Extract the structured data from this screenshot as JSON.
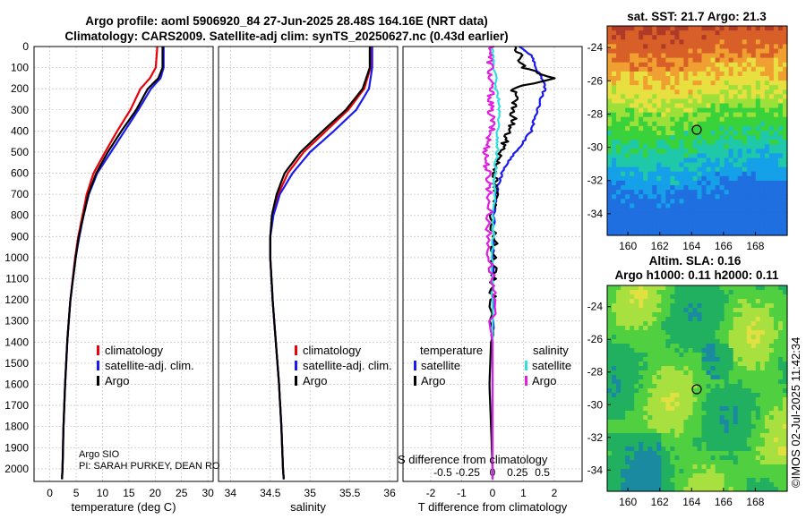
{
  "header": {
    "line1": "Argo profile: aoml 5906920_84 27-Jun-2025 28.48S 164.16E (NRT data)",
    "line2": "Climatology: CARS2009. Satellite-adj clim: synTS_20250627.nc (0.43d earlier)"
  },
  "side": {
    "sst_title": "sat. SST: 21.7 Argo: 21.3",
    "sla_title1": "Altim. SLA: 0.16",
    "sla_title2": "Argo h1000: 0.11 h2000: 0.11",
    "watermark": "©IMOS 02-Jul-2025 11:42:34"
  },
  "credit": {
    "line1": "Argo SIO",
    "line2": "PI: SARAH PURKEY, DEAN RO"
  },
  "colors": {
    "argo": "#000000",
    "climatology": "#e8000b",
    "satellite_adj": "#1a1aee",
    "temp_sat": "#33e0e0",
    "sal_argo": "#e020e0"
  },
  "chart_data": [
    {
      "type": "line",
      "name": "temperature",
      "xlabel": "temperature (deg C)",
      "ylabel": "",
      "xlim": [
        -3,
        31
      ],
      "ylim": [
        2060,
        0
      ],
      "xticks": [
        0,
        5,
        10,
        15,
        20,
        25,
        30
      ],
      "yticks": [
        0,
        100,
        200,
        300,
        400,
        500,
        600,
        700,
        800,
        900,
        1000,
        1100,
        1200,
        1300,
        1400,
        1500,
        1600,
        1700,
        1800,
        1900,
        2000
      ],
      "depth": [
        0,
        100,
        150,
        200,
        300,
        400,
        500,
        600,
        700,
        800,
        900,
        1000,
        1200,
        1400,
        1600,
        1800,
        2000,
        2050
      ],
      "series": [
        {
          "name": "climatology",
          "values": [
            20.4,
            20.1,
            19.0,
            17.2,
            15.3,
            12.8,
            10.5,
            8.3,
            7.0,
            6.2,
            5.4,
            4.8,
            3.9,
            3.3,
            2.9,
            2.6,
            2.4,
            2.3
          ]
        },
        {
          "name": "satellite-adj. clim.",
          "values": [
            21.6,
            21.6,
            21.0,
            19.2,
            16.8,
            14.2,
            11.6,
            9.0,
            7.4,
            6.4,
            5.6,
            4.9,
            3.9,
            3.3,
            2.9,
            2.6,
            2.4,
            2.3
          ]
        },
        {
          "name": "Argo",
          "values": [
            21.4,
            21.4,
            20.6,
            18.6,
            16.4,
            13.6,
            11.0,
            8.8,
            7.3,
            6.4,
            5.5,
            4.9,
            3.9,
            3.3,
            2.9,
            2.6,
            2.4,
            2.3
          ]
        }
      ]
    },
    {
      "type": "line",
      "name": "salinity",
      "xlabel": "salinity",
      "ylabel": "",
      "xlim": [
        33.85,
        36.1
      ],
      "ylim": [
        2060,
        0
      ],
      "xticks": [
        34,
        34.5,
        35,
        35.5,
        36
      ],
      "depth": [
        0,
        100,
        200,
        300,
        400,
        500,
        600,
        700,
        800,
        900,
        1000,
        1200,
        1400,
        1600,
        1800,
        2000,
        2050
      ],
      "series": [
        {
          "name": "climatology",
          "values": [
            35.76,
            35.76,
            35.68,
            35.48,
            35.2,
            34.92,
            34.72,
            34.6,
            34.53,
            34.5,
            34.5,
            34.53,
            34.57,
            34.61,
            34.64,
            34.66,
            34.67
          ]
        },
        {
          "name": "satellite-adj. clim.",
          "values": [
            35.78,
            35.78,
            35.74,
            35.58,
            35.3,
            35.0,
            34.78,
            34.62,
            34.54,
            34.5,
            34.5,
            34.53,
            34.57,
            34.61,
            34.64,
            34.66,
            34.67
          ]
        },
        {
          "name": "Argo",
          "values": [
            35.75,
            35.75,
            35.66,
            35.45,
            35.16,
            34.88,
            34.68,
            34.58,
            34.52,
            34.5,
            34.5,
            34.53,
            34.57,
            34.61,
            34.64,
            34.66,
            34.67
          ]
        }
      ]
    },
    {
      "type": "line",
      "name": "difference",
      "xlabel": "T difference from climatology",
      "ylabel": "",
      "xlim": [
        -2.9,
        2.9
      ],
      "ylim": [
        2060,
        0
      ],
      "xticks": [
        -2,
        -1,
        0,
        1,
        2
      ],
      "salinity_xticks": [
        -0.5,
        -0.25,
        0,
        0.25,
        0.5
      ],
      "salinity_xlabel": "S difference from climatology",
      "depth": [
        0,
        50,
        100,
        150,
        200,
        250,
        300,
        350,
        400,
        450,
        500,
        550,
        600,
        650,
        700,
        800,
        900,
        1000,
        1100,
        1200,
        1400,
        1600,
        1800,
        2000,
        2050
      ],
      "series": [
        {
          "name": "temperature satellite",
          "values": [
            0.9,
            1.3,
            1.4,
            1.6,
            1.7,
            1.55,
            1.45,
            1.35,
            1.25,
            1.0,
            0.75,
            0.5,
            0.3,
            0.2,
            0.12,
            0.05,
            0.02,
            0.01,
            0,
            0,
            0,
            0,
            0,
            0,
            0
          ]
        },
        {
          "name": "temperature Argo",
          "values": [
            0.8,
            0.9,
            1.0,
            2.0,
            0.6,
            0.8,
            0.6,
            0.7,
            0.5,
            0.4,
            0.3,
            0.15,
            0.1,
            0.05,
            0.1,
            0.0,
            0.05,
            0.05,
            0.0,
            0.0,
            -0.05,
            -0.1,
            -0.05,
            0.0,
            0.0
          ]
        },
        {
          "name": "salinity satellite",
          "values": [
            0.0,
            0.0,
            0.05,
            0.1,
            0.1,
            0.2,
            0.2,
            0.2,
            0.15,
            0.15,
            0.15,
            0.1,
            0.08,
            0.06,
            0.05,
            0.03,
            0.02,
            0.0,
            0.0,
            0.0,
            0.0,
            0.0,
            0.0,
            0.0,
            0.0
          ]
        },
        {
          "name": "salinity Argo",
          "values": [
            0.0,
            -0.1,
            -0.05,
            -0.1,
            -0.05,
            -0.05,
            -0.08,
            0.0,
            -0.05,
            -0.15,
            -0.2,
            -0.2,
            -0.15,
            -0.1,
            -0.1,
            -0.1,
            -0.15,
            -0.1,
            0.0,
            0.0,
            0.0,
            0.0,
            0.0,
            0.0,
            0.0
          ]
        }
      ]
    }
  ],
  "legends": {
    "profile": [
      "climatology",
      "satellite-adj. clim.",
      "Argo"
    ],
    "diff_temp_title": "temperature",
    "diff_sal_title": "salinity",
    "diff_temp_items": [
      "satellite",
      "Argo"
    ],
    "diff_sal_items": [
      "satellite",
      "Argo"
    ]
  },
  "maps": {
    "lon_ticks": [
      160,
      162,
      164,
      166,
      168
    ],
    "lat_ticks": [
      -24,
      -26,
      -28,
      -30,
      -32,
      -34
    ],
    "lon_range": [
      158.7,
      170
    ],
    "lat_range": [
      -35.3,
      -22.7
    ],
    "argo_position": [
      164.16,
      -28.48
    ]
  }
}
